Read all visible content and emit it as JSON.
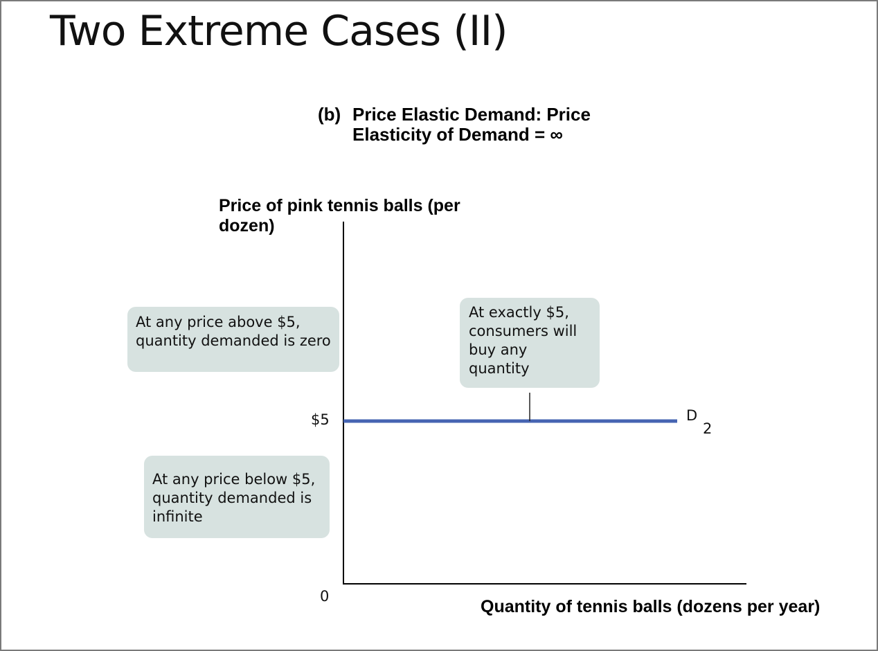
{
  "title": "Two Extreme Cases (II)",
  "panel": {
    "label": "(b)",
    "caption": "Price Elastic Demand: Price Elasticity of Demand = ∞"
  },
  "chart_data": {
    "type": "line",
    "ylabel": "Price of pink tennis balls (per dozen)",
    "xlabel": "Quantity of tennis balls (dozens per year)",
    "origin_label": "0",
    "y_tick_labels": [
      "$5"
    ],
    "series": [
      {
        "name": "D",
        "name_subscript": "2",
        "color": "#4664b2",
        "price": 5,
        "shape": "horizontal"
      }
    ],
    "annotations": [
      "At any price above $5, quantity demanded is zero",
      "At exactly $5, consumers will buy any quantity",
      "At any price below $5, quantity demanded is infinite"
    ],
    "grid": false
  }
}
